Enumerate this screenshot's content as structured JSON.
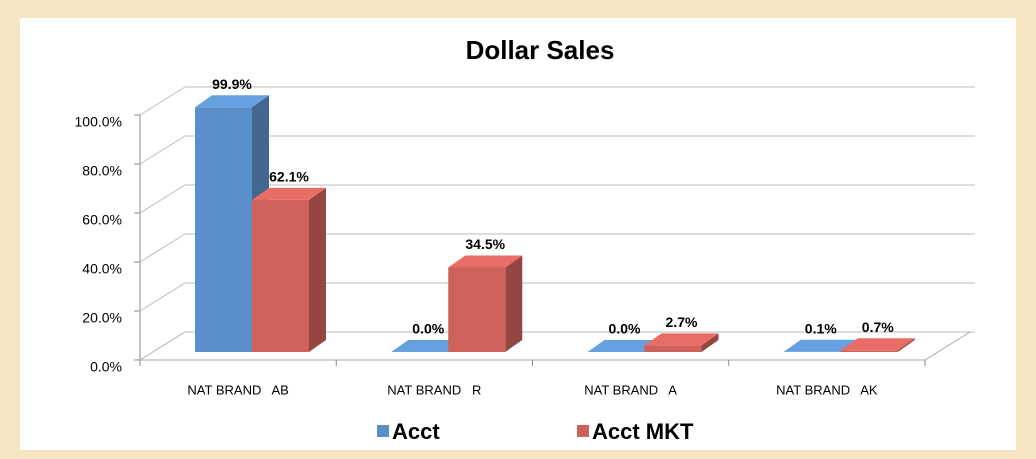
{
  "chart_data": {
    "type": "bar",
    "title": "Dollar Sales",
    "categories": [
      "NAT BRAND   AB",
      "NAT BRAND   R",
      "NAT BRAND   A",
      "NAT BRAND   AK"
    ],
    "series": [
      {
        "name": "Acct",
        "color": "#5b8fc9",
        "values": [
          99.9,
          0.0,
          0.0,
          0.1
        ],
        "value_labels": [
          "99.9%",
          "0.0%",
          "0.0%",
          "0.1%"
        ]
      },
      {
        "name": "Acct MKT",
        "color": "#cf615b",
        "values": [
          62.1,
          34.5,
          2.7,
          0.7
        ],
        "value_labels": [
          "62.1%",
          "34.5%",
          "2.7%",
          "0.7%"
        ]
      }
    ],
    "ylim": [
      0,
      100
    ],
    "yticks": [
      {
        "value": 0,
        "label": "0.0%"
      },
      {
        "value": 20,
        "label": "20.0%"
      },
      {
        "value": 40,
        "label": "40.0%"
      },
      {
        "value": 60,
        "label": "60.0%"
      },
      {
        "value": 80,
        "label": "80.0%"
      },
      {
        "value": 100,
        "label": "100.0%"
      }
    ],
    "grid": true
  }
}
